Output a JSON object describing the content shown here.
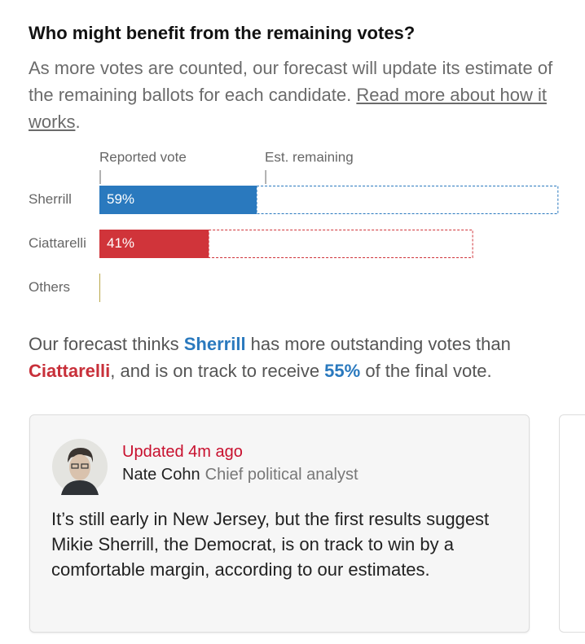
{
  "header": {
    "title": "Who might benefit from the remaining votes?",
    "intro": [
      "As more votes are counted, our forecast will update its estimate of the remaining ballots for each candidate. ",
      "Read more about how it works",
      "."
    ]
  },
  "chart_data": {
    "type": "stacked-bar-horizontal",
    "categories": [
      "Sherrill",
      "Ciattarelli",
      "Others"
    ],
    "colors": [
      "#2a79be",
      "#d0343a",
      "#b9a74a"
    ],
    "xlim": [
      0,
      180
    ],
    "series": [
      {
        "name": "Reported vote",
        "values": [
          59,
          41,
          0
        ],
        "value_labels": [
          "59%",
          "41%",
          null
        ]
      },
      {
        "name": "Est. remaining",
        "values": [
          113,
          99,
          0
        ]
      }
    ]
  },
  "summary": [
    "Our forecast thinks ",
    "Sherrill",
    " has more outstanding votes than ",
    "Ciattarelli",
    ", and is on track to receive ",
    "55%",
    " of the final vote."
  ],
  "card": {
    "updated": "Updated 4m ago",
    "author": "Nate Cohn",
    "role": "Chief political analyst",
    "body": "It’s still early in New Jersey, but the first results suggest Mikie Sherrill, the Democrat, is on track to win by a comfortable margin, according to our estimates."
  }
}
